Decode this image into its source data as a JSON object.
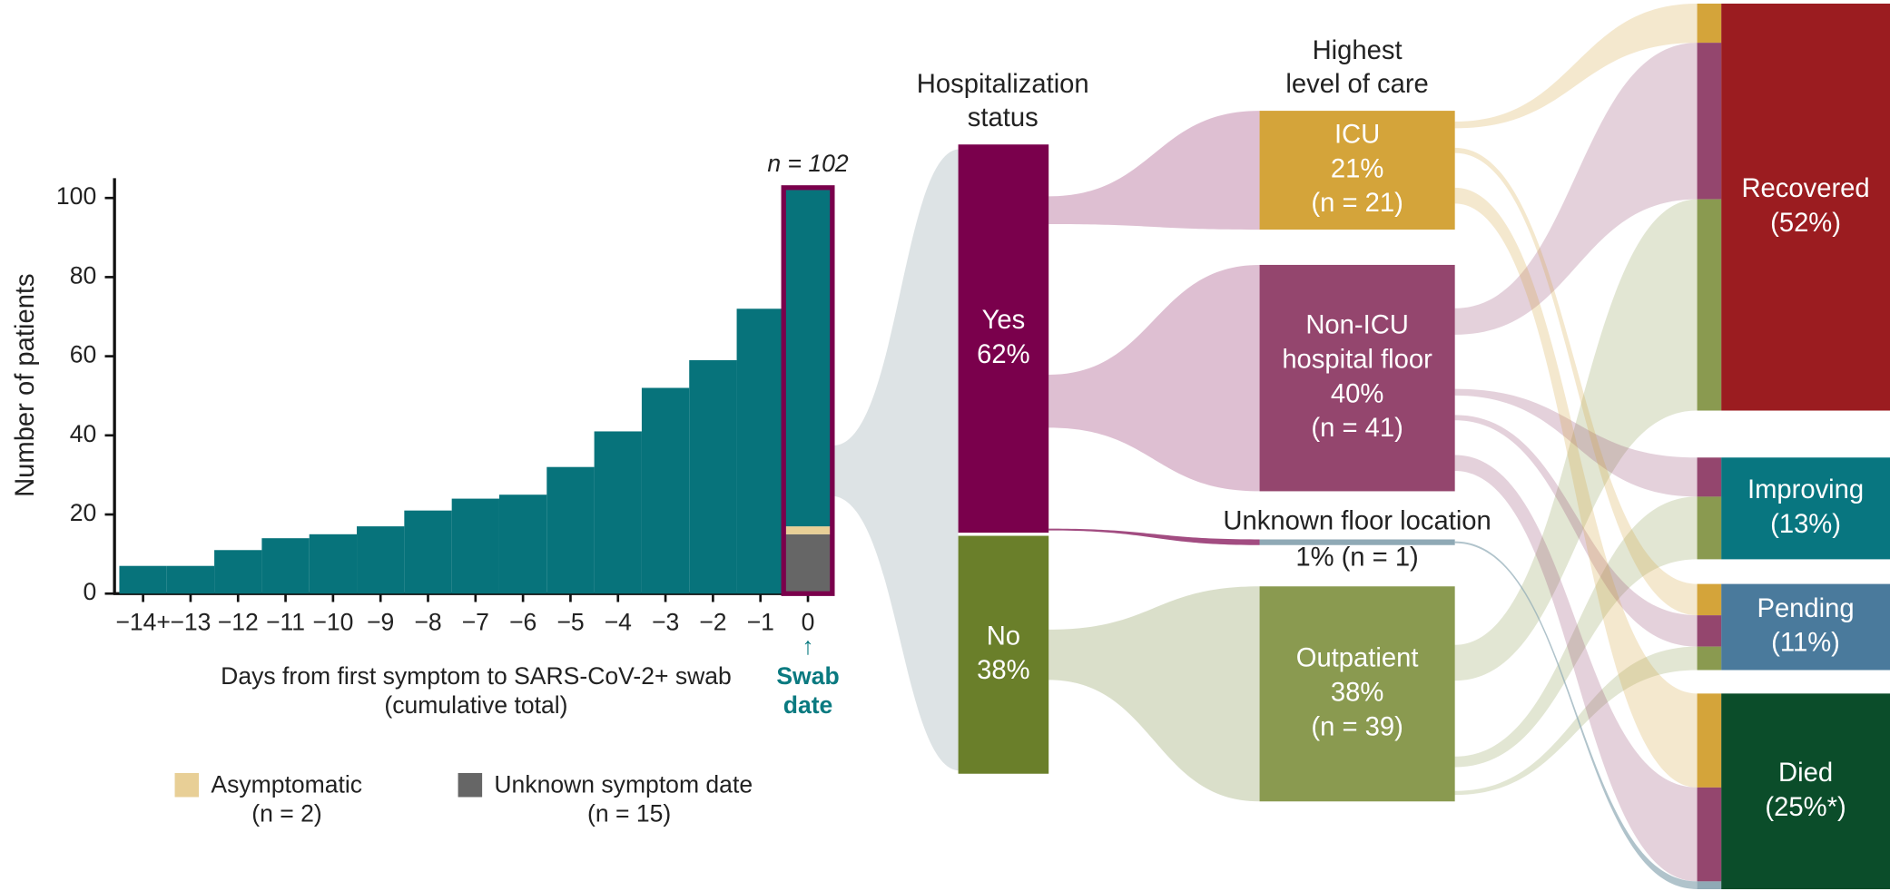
{
  "chart_data": [
    {
      "type": "bar",
      "ylabel": "Number of patients",
      "xlabel": [
        "Days from first symptom to SARS-CoV-2+ swab",
        "(cumulative total)"
      ],
      "annotation": "n = 102",
      "marker": {
        "arrow": "↑",
        "text": [
          "Swab",
          "date"
        ],
        "color": "#0a7a80"
      },
      "highlight_color": "#7a004c",
      "categories": [
        "−14+",
        "−13",
        "−12",
        "−11",
        "−10",
        "−9",
        "−8",
        "−7",
        "−6",
        "−5",
        "−4",
        "−3",
        "−2",
        "−1",
        "0"
      ],
      "series": [
        {
          "name": "Unknown symptom date",
          "note": "(n = 15)",
          "color": "#666666",
          "values": [
            null,
            null,
            null,
            null,
            null,
            null,
            null,
            null,
            null,
            null,
            null,
            null,
            null,
            null,
            15
          ]
        },
        {
          "name": "Asymptomatic",
          "note": "(n = 2)",
          "color": "#e8cf96",
          "values": [
            null,
            null,
            null,
            null,
            null,
            null,
            null,
            null,
            null,
            null,
            null,
            null,
            null,
            null,
            2
          ]
        },
        {
          "color": "#07737b",
          "values": [
            7,
            7,
            11,
            14,
            15,
            17,
            21,
            24,
            25,
            32,
            41,
            52,
            59,
            72,
            85
          ]
        }
      ],
      "ylim": [
        0,
        105
      ],
      "yticks": [
        0,
        20,
        40,
        60,
        80,
        100
      ]
    },
    {
      "type": "sankey",
      "columns": [
        {
          "title": [
            "Hospitalization",
            "status"
          ],
          "nodes": [
            {
              "label": [
                "Yes"
              ],
              "value": 62,
              "value_label": "62%",
              "color": "#7a004c"
            },
            {
              "label": [
                "No"
              ],
              "value": 38,
              "value_label": "38%",
              "color": "#6a7f2a"
            }
          ]
        },
        {
          "title": [
            "Highest",
            "level of care"
          ],
          "nodes": [
            {
              "label": [
                "ICU"
              ],
              "value": 21,
              "value_label": "21%",
              "n": 21,
              "n_label": "(n = 21)",
              "color": "#d4a43a",
              "inflows": [
                {
                  "from": "Yes",
                  "value": 21
                }
              ]
            },
            {
              "label": [
                "Non-ICU",
                "hospital floor"
              ],
              "value": 40,
              "value_label": "40%",
              "n": 41,
              "n_label": "(n = 41)",
              "color": "#94466e",
              "inflows": [
                {
                  "from": "Yes",
                  "value": 40
                }
              ]
            },
            {
              "label": [
                "Unknown floor location"
              ],
              "value": 1,
              "value_label": "1%",
              "n": 1,
              "n_label": "(n = 1)",
              "color": "#8fa9b5",
              "inflows": [
                {
                  "from": "Yes",
                  "value": 1
                }
              ]
            },
            {
              "label": [
                "Outpatient"
              ],
              "value": 38,
              "value_label": "38%",
              "n": 39,
              "n_label": "(n = 39)",
              "color": "#8a9a50",
              "inflows": [
                {
                  "from": "No",
                  "value": 38
                }
              ]
            }
          ]
        },
        {
          "nodes": [
            {
              "label": [
                "Recovered"
              ],
              "value": 52,
              "value_label": "(52%)",
              "color": "#9b1c20",
              "inflows": [
                {
                  "from": "ICU",
                  "value": 5
                },
                {
                  "from": "Non-ICU",
                  "value": 20
                },
                {
                  "from": "Outpatient",
                  "value": 27
                }
              ]
            },
            {
              "label": [
                "Improving"
              ],
              "value": 13,
              "value_label": "(13%)",
              "color": "#087680",
              "inflows": [
                {
                  "from": "Non-ICU",
                  "value": 5
                },
                {
                  "from": "Outpatient",
                  "value": 8
                }
              ]
            },
            {
              "label": [
                "Pending"
              ],
              "value": 11,
              "value_label": "(11%)",
              "color": "#4a7a9c",
              "inflows": [
                {
                  "from": "ICU",
                  "value": 4
                },
                {
                  "from": "Non-ICU",
                  "value": 4
                },
                {
                  "from": "Outpatient",
                  "value": 3
                }
              ]
            },
            {
              "label": [
                "Died"
              ],
              "value": 25,
              "value_label": "(25%*)",
              "color": "#0b4d2a",
              "inflows": [
                {
                  "from": "ICU",
                  "value": 12
                },
                {
                  "from": "Non-ICU",
                  "value": 12
                },
                {
                  "from": "Unknown floor location",
                  "value": 1
                }
              ]
            }
          ]
        }
      ]
    }
  ]
}
